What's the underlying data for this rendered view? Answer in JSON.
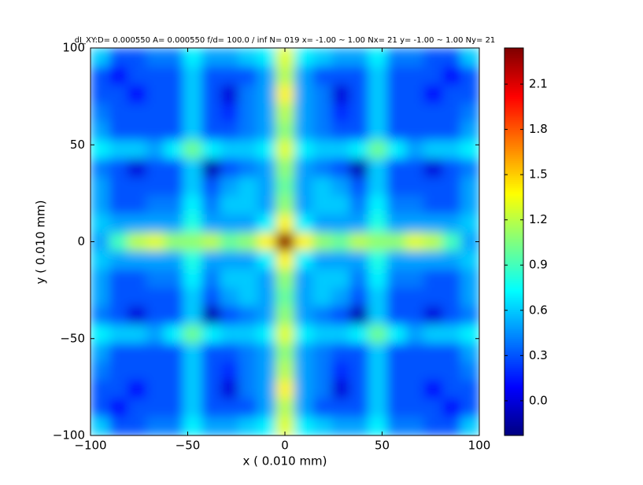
{
  "chart_data": {
    "type": "heatmap",
    "title": "dI_XY:D= 0.000550 A= 0.000550 f/d= 100.0 / inf N= 019 x= -1.00 ~ 1.00 Nx= 21 y= -1.00 ~ 1.00 Ny= 21",
    "xlabel": "x ( 0.010 mm)",
    "ylabel": "y ( 0.010 mm)",
    "xlim": [
      -100,
      100
    ],
    "ylim": [
      -100,
      100
    ],
    "xticks": [
      {
        "value": -100,
        "label": "−100"
      },
      {
        "value": -50,
        "label": "−50"
      },
      0,
      50,
      100
    ],
    "yticks": [
      {
        "value": -100,
        "label": "−100"
      },
      {
        "value": -50,
        "label": "−50"
      },
      0,
      50,
      100
    ],
    "colormap": "jet",
    "zlim": [
      -0.23,
      2.34
    ],
    "zticks": [
      {
        "value": 0,
        "label": "0.0"
      },
      0.3,
      0.6,
      0.9,
      1.2,
      1.5,
      1.8,
      2.1
    ],
    "z": [
      [
        0.6,
        0.3,
        0.3,
        0.4,
        0.4,
        0.7,
        0.5,
        0.5,
        0.6,
        0.7,
        1.3,
        0.7,
        0.6,
        0.5,
        0.5,
        0.7,
        0.4,
        0.4,
        0.3,
        0.3,
        0.6
      ],
      [
        0.3,
        0.1,
        0.3,
        0.3,
        0.3,
        0.6,
        0.3,
        0.3,
        0.3,
        0.5,
        1.2,
        0.5,
        0.3,
        0.3,
        0.3,
        0.6,
        0.3,
        0.3,
        0.3,
        0.1,
        0.3
      ],
      [
        0.3,
        0.3,
        0.1,
        0.3,
        0.3,
        0.6,
        0.3,
        0.0,
        0.4,
        0.5,
        1.4,
        0.5,
        0.4,
        0.0,
        0.3,
        0.6,
        0.3,
        0.3,
        0.1,
        0.3,
        0.3
      ],
      [
        0.4,
        0.3,
        0.3,
        0.3,
        0.3,
        0.6,
        0.3,
        0.2,
        0.4,
        0.5,
        1.2,
        0.5,
        0.4,
        0.2,
        0.3,
        0.6,
        0.3,
        0.3,
        0.3,
        0.3,
        0.4
      ],
      [
        0.5,
        0.3,
        0.3,
        0.3,
        0.3,
        0.6,
        0.3,
        0.3,
        0.4,
        0.5,
        1.1,
        0.5,
        0.4,
        0.3,
        0.3,
        0.6,
        0.3,
        0.3,
        0.3,
        0.3,
        0.5
      ],
      [
        0.7,
        0.6,
        0.6,
        0.5,
        0.7,
        1.0,
        0.7,
        0.6,
        0.6,
        0.7,
        1.3,
        0.7,
        0.6,
        0.6,
        0.7,
        1.0,
        0.7,
        0.5,
        0.6,
        0.6,
        0.7
      ],
      [
        0.4,
        0.3,
        0.0,
        0.3,
        0.3,
        0.6,
        -0.1,
        0.3,
        0.4,
        0.5,
        1.1,
        0.5,
        0.4,
        0.3,
        -0.1,
        0.6,
        0.3,
        0.3,
        0.0,
        0.3,
        0.4
      ],
      [
        0.5,
        0.3,
        0.3,
        0.3,
        0.3,
        0.6,
        0.3,
        0.5,
        0.6,
        0.5,
        1.0,
        0.5,
        0.6,
        0.5,
        0.3,
        0.6,
        0.3,
        0.3,
        0.3,
        0.3,
        0.5
      ],
      [
        0.5,
        0.3,
        0.3,
        0.4,
        0.4,
        0.7,
        0.4,
        0.6,
        0.6,
        0.5,
        1.1,
        0.5,
        0.6,
        0.6,
        0.4,
        0.7,
        0.4,
        0.4,
        0.3,
        0.3,
        0.5
      ],
      [
        0.6,
        0.5,
        0.5,
        0.5,
        0.5,
        0.8,
        0.5,
        0.5,
        0.5,
        0.7,
        1.4,
        0.7,
        0.5,
        0.5,
        0.5,
        0.8,
        0.5,
        0.5,
        0.5,
        0.5,
        0.6
      ],
      [
        0.5,
        0.9,
        1.2,
        1.3,
        1.1,
        1.1,
        1.2,
        1.0,
        1.1,
        1.4,
        2.3,
        1.4,
        1.1,
        1.0,
        1.2,
        1.1,
        1.1,
        1.3,
        1.2,
        0.9,
        0.5
      ],
      [
        0.6,
        0.5,
        0.5,
        0.5,
        0.5,
        0.8,
        0.5,
        0.5,
        0.5,
        0.7,
        1.4,
        0.7,
        0.5,
        0.5,
        0.5,
        0.8,
        0.5,
        0.5,
        0.5,
        0.5,
        0.6
      ],
      [
        0.5,
        0.3,
        0.3,
        0.4,
        0.4,
        0.7,
        0.4,
        0.6,
        0.6,
        0.5,
        1.1,
        0.5,
        0.6,
        0.6,
        0.4,
        0.7,
        0.4,
        0.4,
        0.3,
        0.3,
        0.5
      ],
      [
        0.5,
        0.3,
        0.3,
        0.3,
        0.3,
        0.6,
        0.3,
        0.5,
        0.6,
        0.5,
        1.0,
        0.5,
        0.6,
        0.5,
        0.3,
        0.6,
        0.3,
        0.3,
        0.3,
        0.3,
        0.5
      ],
      [
        0.4,
        0.3,
        0.0,
        0.3,
        0.3,
        0.6,
        -0.1,
        0.3,
        0.4,
        0.5,
        1.1,
        0.5,
        0.4,
        0.3,
        -0.1,
        0.6,
        0.3,
        0.3,
        0.0,
        0.3,
        0.4
      ],
      [
        0.7,
        0.6,
        0.6,
        0.5,
        0.7,
        1.0,
        0.7,
        0.6,
        0.6,
        0.7,
        1.3,
        0.7,
        0.6,
        0.6,
        0.7,
        1.0,
        0.7,
        0.5,
        0.6,
        0.6,
        0.7
      ],
      [
        0.5,
        0.3,
        0.3,
        0.3,
        0.3,
        0.6,
        0.3,
        0.3,
        0.4,
        0.5,
        1.1,
        0.5,
        0.4,
        0.3,
        0.3,
        0.6,
        0.3,
        0.3,
        0.3,
        0.3,
        0.5
      ],
      [
        0.4,
        0.3,
        0.3,
        0.3,
        0.3,
        0.6,
        0.3,
        0.2,
        0.4,
        0.5,
        1.2,
        0.5,
        0.4,
        0.2,
        0.3,
        0.6,
        0.3,
        0.3,
        0.3,
        0.3,
        0.4
      ],
      [
        0.3,
        0.3,
        0.1,
        0.3,
        0.3,
        0.6,
        0.3,
        0.0,
        0.4,
        0.5,
        1.4,
        0.5,
        0.4,
        0.0,
        0.3,
        0.6,
        0.3,
        0.3,
        0.1,
        0.3,
        0.3
      ],
      [
        0.3,
        0.1,
        0.3,
        0.3,
        0.3,
        0.6,
        0.3,
        0.3,
        0.3,
        0.5,
        1.2,
        0.5,
        0.3,
        0.3,
        0.3,
        0.6,
        0.3,
        0.3,
        0.3,
        0.1,
        0.3
      ],
      [
        0.6,
        0.3,
        0.3,
        0.4,
        0.4,
        0.7,
        0.5,
        0.5,
        0.6,
        0.7,
        1.3,
        0.7,
        0.6,
        0.5,
        0.5,
        0.7,
        0.4,
        0.4,
        0.3,
        0.3,
        0.6
      ]
    ]
  }
}
